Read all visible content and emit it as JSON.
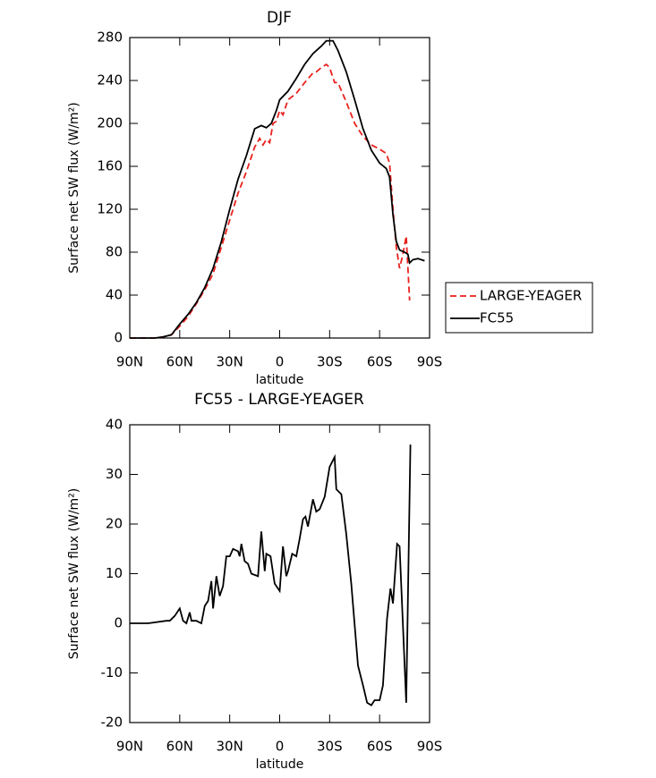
{
  "chart_data": [
    {
      "type": "line",
      "title": "DJF",
      "xlabel": "latitude",
      "ylabel": "Surface net SW flux (W/m²)",
      "xlim": [
        90,
        -90
      ],
      "xticks": [
        {
          "value": 90,
          "label": "90N"
        },
        {
          "value": 60,
          "label": "60N"
        },
        {
          "value": 30,
          "label": "30N"
        },
        0,
        {
          "value": -30,
          "label": "30S"
        },
        {
          "value": -60,
          "label": "60S"
        },
        {
          "value": -90,
          "label": "90S"
        }
      ],
      "ylim": [
        0,
        280
      ],
      "yticks": [
        0,
        40,
        80,
        120,
        160,
        200,
        240,
        280
      ],
      "legend": "right",
      "series": [
        {
          "name": "LARGE-YEAGER",
          "color": "#e8221e",
          "dash": true,
          "x": [
            90,
            80,
            75,
            70,
            65,
            60,
            55,
            50,
            45,
            40,
            35,
            30,
            25,
            20,
            15,
            12,
            10,
            8,
            6,
            4,
            2,
            0,
            -2,
            -5,
            -10,
            -15,
            -20,
            -22,
            -25,
            -28,
            -30,
            -33,
            -35,
            -40,
            -45,
            -50,
            -55,
            -60,
            -64,
            -66,
            -68,
            -70,
            -72,
            -74,
            -76,
            -78
          ],
          "values": [
            0,
            0,
            0,
            1,
            3,
            11,
            20,
            32,
            45,
            60,
            85,
            110,
            135,
            155,
            178,
            186,
            180,
            185,
            182,
            200,
            202,
            212,
            208,
            222,
            228,
            238,
            247,
            248,
            252,
            255,
            252,
            238,
            238,
            220,
            200,
            188,
            180,
            176,
            172,
            163,
            120,
            85,
            65,
            78,
            95,
            35
          ]
        },
        {
          "name": "FC55",
          "color": "#000000",
          "dash": false,
          "x": [
            90,
            80,
            75,
            70,
            65,
            60,
            55,
            50,
            45,
            40,
            35,
            30,
            25,
            20,
            15,
            11,
            8,
            5,
            2,
            0,
            -5,
            -10,
            -15,
            -20,
            -25,
            -28,
            -32,
            -35,
            -40,
            -45,
            -50,
            -55,
            -60,
            -64,
            -66,
            -68,
            -70,
            -72,
            -75,
            -77,
            -78,
            -80,
            -83,
            -87
          ],
          "values": [
            0,
            0,
            0,
            1,
            3,
            13,
            22,
            33,
            47,
            65,
            90,
            120,
            148,
            170,
            195,
            198,
            196,
            200,
            212,
            222,
            230,
            242,
            255,
            265,
            272,
            277,
            277,
            268,
            248,
            222,
            195,
            175,
            163,
            158,
            150,
            115,
            90,
            82,
            80,
            78,
            70,
            73,
            74,
            72
          ]
        }
      ]
    },
    {
      "type": "line",
      "title": "FC55 - LARGE-YEAGER",
      "xlabel": "latitude",
      "ylabel": "Surface net SW flux (W/m²)",
      "xlim": [
        90,
        -90
      ],
      "xticks": [
        {
          "value": 90,
          "label": "90N"
        },
        {
          "value": 60,
          "label": "60N"
        },
        {
          "value": 30,
          "label": "30N"
        },
        0,
        {
          "value": -30,
          "label": "30S"
        },
        {
          "value": -60,
          "label": "60S"
        },
        {
          "value": -90,
          "label": "90S"
        }
      ],
      "ylim": [
        -20,
        40
      ],
      "yticks": [
        -20,
        -10,
        0,
        10,
        20,
        30,
        40
      ],
      "color": "#000000",
      "x": [
        90,
        79,
        68,
        66,
        63,
        60,
        58,
        56,
        54,
        53,
        50,
        47,
        45,
        43,
        41,
        40,
        38,
        36,
        34,
        32,
        30,
        28,
        25,
        24,
        23,
        21,
        19,
        17,
        13,
        11,
        9,
        8,
        5.5,
        3,
        0,
        -2,
        -4,
        -5,
        -7.5,
        -10,
        -12,
        -14,
        -15.5,
        -17,
        -20,
        -22,
        -24,
        -27,
        -30,
        -33,
        -34,
        -37,
        -40,
        -43,
        -47,
        -50,
        -52.5,
        -55,
        -57,
        -60,
        -62,
        -64.5,
        -66.5,
        -68,
        -70.5,
        -72,
        -76,
        -78.5
      ],
      "values": [
        0,
        0,
        0.5,
        0.5,
        1.5,
        3,
        0.5,
        0,
        2.2,
        0.5,
        0.5,
        0,
        3.5,
        4.5,
        8.5,
        3,
        9.5,
        5.5,
        7.5,
        13.5,
        13.5,
        15,
        14.5,
        13.5,
        16,
        12.5,
        12,
        10,
        9.5,
        18.5,
        10.5,
        14,
        13.5,
        8,
        6.5,
        15.5,
        9.5,
        10.5,
        14,
        13.5,
        17,
        21,
        21.5,
        19.5,
        25,
        22.5,
        23,
        25.5,
        31.5,
        33.5,
        27,
        26,
        18,
        8,
        -8.5,
        -12.5,
        -16,
        -16.5,
        -15.5,
        -15.5,
        -12.5,
        1,
        7,
        4,
        16,
        15.5,
        -16,
        36
      ]
    }
  ]
}
